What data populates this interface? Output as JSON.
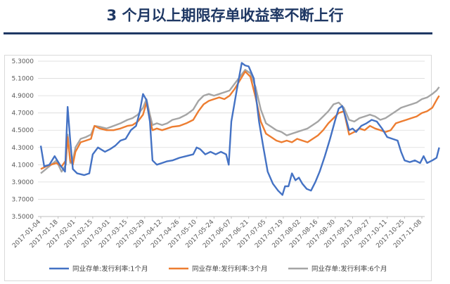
{
  "title": "3 个月以上期限存单收益率不断上行",
  "chart_data": {
    "type": "line",
    "title": "3 个月以上期限存单收益率不断上行",
    "xlabel": "",
    "ylabel": "",
    "ylim": [
      3.5,
      5.3
    ],
    "yticks": [
      "5.3000",
      "5.1000",
      "4.9000",
      "4.7000",
      "4.5000",
      "4.3000",
      "4.1000",
      "3.9000",
      "3.7000",
      "3.5000"
    ],
    "xticks": [
      "2017-01-04",
      "2017-01-18",
      "2017-02-01",
      "2017-02-15",
      "2017-03-01",
      "2017-03-15",
      "2017-03-29",
      "2017-04-12",
      "2017-04-26",
      "2017-05-10",
      "2017-05-24",
      "2017-06-07",
      "2017-06-21",
      "2017-07-05",
      "2017-07-19",
      "2017-08-02",
      "2017-08-16",
      "2017-08-30",
      "2017-09-13",
      "2017-09-27",
      "2017-10-11",
      "2017-10-25",
      "2017-11-08"
    ],
    "legend_position": "bottom",
    "grid": true,
    "series": [
      {
        "name": "同业存单:发行利率:1个月",
        "color": "#4472c4",
        "points": [
          [
            0,
            4.32
          ],
          [
            0.2,
            4.08
          ],
          [
            0.5,
            4.1
          ],
          [
            0.8,
            4.2
          ],
          [
            1.1,
            4.1
          ],
          [
            1.4,
            4.02
          ],
          [
            1.55,
            4.77
          ],
          [
            1.7,
            4.38
          ],
          [
            1.85,
            4.05
          ],
          [
            2.1,
            4.0
          ],
          [
            2.5,
            3.98
          ],
          [
            2.8,
            4.0
          ],
          [
            3.0,
            4.22
          ],
          [
            3.3,
            4.3
          ],
          [
            3.7,
            4.25
          ],
          [
            4.0,
            4.28
          ],
          [
            4.3,
            4.32
          ],
          [
            4.6,
            4.38
          ],
          [
            4.9,
            4.4
          ],
          [
            5.2,
            4.5
          ],
          [
            5.5,
            4.55
          ],
          [
            5.7,
            4.7
          ],
          [
            5.9,
            4.92
          ],
          [
            6.1,
            4.85
          ],
          [
            6.3,
            4.6
          ],
          [
            6.45,
            4.15
          ],
          [
            6.7,
            4.1
          ],
          [
            7.0,
            4.12
          ],
          [
            7.3,
            4.14
          ],
          [
            7.6,
            4.15
          ],
          [
            8.0,
            4.18
          ],
          [
            8.4,
            4.2
          ],
          [
            8.8,
            4.22
          ],
          [
            9.0,
            4.3
          ],
          [
            9.2,
            4.28
          ],
          [
            9.5,
            4.22
          ],
          [
            9.8,
            4.25
          ],
          [
            10.1,
            4.22
          ],
          [
            10.4,
            4.25
          ],
          [
            10.7,
            4.22
          ],
          [
            10.85,
            4.1
          ],
          [
            11.0,
            4.6
          ],
          [
            11.3,
            4.95
          ],
          [
            11.6,
            5.28
          ],
          [
            11.8,
            5.25
          ],
          [
            12.0,
            5.24
          ],
          [
            12.3,
            5.1
          ],
          [
            12.6,
            4.6
          ],
          [
            12.85,
            4.3
          ],
          [
            13.1,
            4.02
          ],
          [
            13.4,
            3.88
          ],
          [
            13.7,
            3.8
          ],
          [
            13.95,
            3.75
          ],
          [
            14.1,
            3.85
          ],
          [
            14.3,
            3.85
          ],
          [
            14.5,
            4.0
          ],
          [
            14.7,
            3.92
          ],
          [
            14.9,
            3.95
          ],
          [
            15.1,
            3.88
          ],
          [
            15.35,
            3.82
          ],
          [
            15.6,
            3.8
          ],
          [
            15.85,
            3.9
          ],
          [
            16.1,
            4.02
          ],
          [
            16.4,
            4.2
          ],
          [
            16.7,
            4.4
          ],
          [
            17.0,
            4.62
          ],
          [
            17.2,
            4.75
          ],
          [
            17.4,
            4.78
          ],
          [
            17.6,
            4.65
          ],
          [
            17.8,
            4.5
          ],
          [
            18.0,
            4.52
          ],
          [
            18.2,
            4.48
          ],
          [
            18.5,
            4.55
          ],
          [
            18.8,
            4.58
          ],
          [
            19.1,
            4.62
          ],
          [
            19.4,
            4.6
          ],
          [
            19.7,
            4.52
          ],
          [
            20.0,
            4.42
          ],
          [
            20.3,
            4.4
          ],
          [
            20.6,
            4.38
          ],
          [
            20.8,
            4.25
          ],
          [
            21.0,
            4.15
          ],
          [
            21.3,
            4.13
          ],
          [
            21.6,
            4.15
          ],
          [
            21.9,
            4.12
          ],
          [
            22.1,
            4.2
          ],
          [
            22.3,
            4.12
          ],
          [
            22.6,
            4.15
          ],
          [
            22.85,
            4.18
          ],
          [
            23.0,
            4.3
          ]
        ]
      },
      {
        "name": "同业存单:发行利率:3个月",
        "color": "#ed7d31",
        "points": [
          [
            0,
            4.05
          ],
          [
            0.3,
            4.08
          ],
          [
            0.6,
            4.1
          ],
          [
            0.9,
            4.12
          ],
          [
            1.2,
            4.08
          ],
          [
            1.45,
            4.15
          ],
          [
            1.55,
            4.42
          ],
          [
            1.7,
            4.15
          ],
          [
            1.85,
            4.1
          ],
          [
            2.0,
            4.25
          ],
          [
            2.3,
            4.36
          ],
          [
            2.6,
            4.38
          ],
          [
            2.9,
            4.4
          ],
          [
            3.1,
            4.55
          ],
          [
            3.4,
            4.52
          ],
          [
            3.8,
            4.5
          ],
          [
            4.2,
            4.5
          ],
          [
            4.6,
            4.52
          ],
          [
            5.0,
            4.55
          ],
          [
            5.3,
            4.56
          ],
          [
            5.6,
            4.6
          ],
          [
            5.9,
            4.68
          ],
          [
            6.1,
            4.82
          ],
          [
            6.3,
            4.62
          ],
          [
            6.45,
            4.5
          ],
          [
            6.7,
            4.52
          ],
          [
            7.0,
            4.5
          ],
          [
            7.3,
            4.52
          ],
          [
            7.6,
            4.54
          ],
          [
            8.0,
            4.55
          ],
          [
            8.4,
            4.58
          ],
          [
            8.8,
            4.62
          ],
          [
            9.1,
            4.72
          ],
          [
            9.4,
            4.8
          ],
          [
            9.7,
            4.84
          ],
          [
            10.0,
            4.86
          ],
          [
            10.3,
            4.88
          ],
          [
            10.6,
            4.86
          ],
          [
            10.9,
            4.9
          ],
          [
            11.2,
            4.98
          ],
          [
            11.5,
            5.08
          ],
          [
            11.8,
            5.18
          ],
          [
            12.1,
            5.12
          ],
          [
            12.4,
            4.88
          ],
          [
            12.7,
            4.6
          ],
          [
            13.0,
            4.46
          ],
          [
            13.3,
            4.42
          ],
          [
            13.6,
            4.38
          ],
          [
            13.9,
            4.36
          ],
          [
            14.2,
            4.38
          ],
          [
            14.5,
            4.36
          ],
          [
            14.8,
            4.4
          ],
          [
            15.1,
            4.38
          ],
          [
            15.4,
            4.36
          ],
          [
            15.7,
            4.4
          ],
          [
            16.0,
            4.44
          ],
          [
            16.3,
            4.5
          ],
          [
            16.6,
            4.58
          ],
          [
            16.9,
            4.64
          ],
          [
            17.2,
            4.7
          ],
          [
            17.5,
            4.72
          ],
          [
            17.8,
            4.45
          ],
          [
            18.1,
            4.48
          ],
          [
            18.4,
            4.52
          ],
          [
            18.7,
            4.5
          ],
          [
            19.0,
            4.55
          ],
          [
            19.3,
            4.52
          ],
          [
            19.6,
            4.5
          ],
          [
            19.9,
            4.48
          ],
          [
            20.2,
            4.5
          ],
          [
            20.5,
            4.58
          ],
          [
            20.8,
            4.6
          ],
          [
            21.1,
            4.62
          ],
          [
            21.4,
            4.64
          ],
          [
            21.7,
            4.66
          ],
          [
            22.0,
            4.7
          ],
          [
            22.3,
            4.72
          ],
          [
            22.6,
            4.76
          ],
          [
            22.85,
            4.85
          ],
          [
            23.0,
            4.9
          ]
        ]
      },
      {
        "name": "同业存单:发行利率:6个月",
        "color": "#a5a5a5",
        "points": [
          [
            0,
            4.0
          ],
          [
            0.3,
            4.05
          ],
          [
            0.6,
            4.1
          ],
          [
            0.9,
            4.15
          ],
          [
            1.2,
            4.02
          ],
          [
            1.45,
            4.1
          ],
          [
            1.55,
            4.45
          ],
          [
            1.7,
            4.12
          ],
          [
            1.85,
            4.15
          ],
          [
            2.0,
            4.3
          ],
          [
            2.3,
            4.4
          ],
          [
            2.6,
            4.42
          ],
          [
            2.9,
            4.45
          ],
          [
            3.1,
            4.55
          ],
          [
            3.4,
            4.54
          ],
          [
            3.8,
            4.52
          ],
          [
            4.2,
            4.55
          ],
          [
            4.6,
            4.58
          ],
          [
            5.0,
            4.62
          ],
          [
            5.3,
            4.64
          ],
          [
            5.6,
            4.68
          ],
          [
            5.9,
            4.76
          ],
          [
            6.1,
            4.86
          ],
          [
            6.3,
            4.68
          ],
          [
            6.45,
            4.56
          ],
          [
            6.7,
            4.58
          ],
          [
            7.0,
            4.56
          ],
          [
            7.3,
            4.58
          ],
          [
            7.6,
            4.62
          ],
          [
            8.0,
            4.64
          ],
          [
            8.4,
            4.68
          ],
          [
            8.8,
            4.74
          ],
          [
            9.1,
            4.84
          ],
          [
            9.4,
            4.9
          ],
          [
            9.7,
            4.92
          ],
          [
            10.0,
            4.9
          ],
          [
            10.3,
            4.92
          ],
          [
            10.6,
            4.94
          ],
          [
            10.9,
            4.96
          ],
          [
            11.2,
            5.04
          ],
          [
            11.5,
            5.12
          ],
          [
            11.8,
            5.2
          ],
          [
            12.1,
            5.16
          ],
          [
            12.4,
            5.0
          ],
          [
            12.7,
            4.74
          ],
          [
            13.0,
            4.58
          ],
          [
            13.3,
            4.54
          ],
          [
            13.6,
            4.5
          ],
          [
            13.9,
            4.48
          ],
          [
            14.2,
            4.44
          ],
          [
            14.5,
            4.46
          ],
          [
            14.8,
            4.48
          ],
          [
            15.1,
            4.5
          ],
          [
            15.4,
            4.52
          ],
          [
            15.7,
            4.56
          ],
          [
            16.0,
            4.6
          ],
          [
            16.3,
            4.66
          ],
          [
            16.6,
            4.72
          ],
          [
            16.9,
            4.8
          ],
          [
            17.2,
            4.82
          ],
          [
            17.5,
            4.76
          ],
          [
            17.8,
            4.62
          ],
          [
            18.1,
            4.6
          ],
          [
            18.4,
            4.64
          ],
          [
            18.7,
            4.66
          ],
          [
            19.0,
            4.68
          ],
          [
            19.3,
            4.66
          ],
          [
            19.6,
            4.62
          ],
          [
            19.9,
            4.64
          ],
          [
            20.2,
            4.68
          ],
          [
            20.5,
            4.72
          ],
          [
            20.8,
            4.76
          ],
          [
            21.1,
            4.78
          ],
          [
            21.4,
            4.8
          ],
          [
            21.7,
            4.82
          ],
          [
            22.0,
            4.86
          ],
          [
            22.3,
            4.88
          ],
          [
            22.6,
            4.92
          ],
          [
            22.85,
            4.96
          ],
          [
            23.0,
            5.0
          ]
        ]
      }
    ]
  }
}
